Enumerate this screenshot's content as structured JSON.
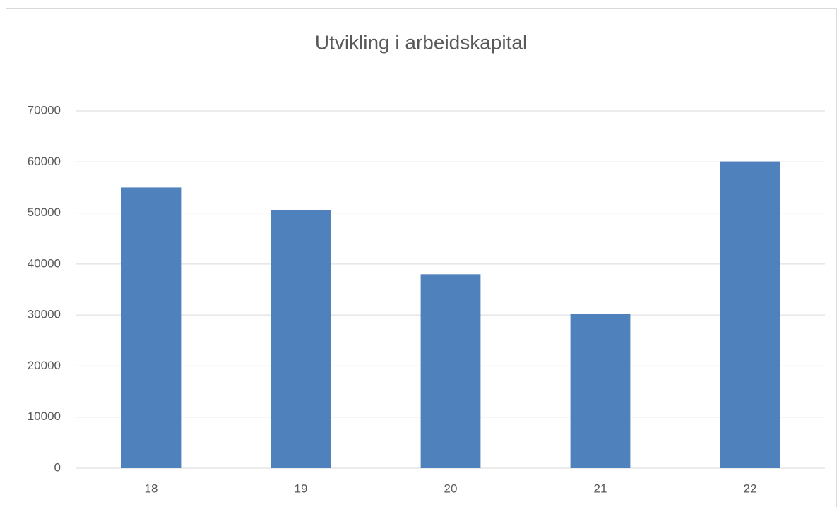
{
  "chart_data": {
    "type": "bar",
    "title": "Utvikling i arbeidskapital",
    "categories": [
      "18",
      "19",
      "20",
      "21",
      "22"
    ],
    "values": [
      55000,
      50500,
      38000,
      30200,
      60100
    ],
    "color": "#4f81bd",
    "ylim": [
      0,
      70000
    ],
    "yticks": [
      0,
      10000,
      20000,
      30000,
      40000,
      50000,
      60000,
      70000
    ],
    "grid": true
  }
}
